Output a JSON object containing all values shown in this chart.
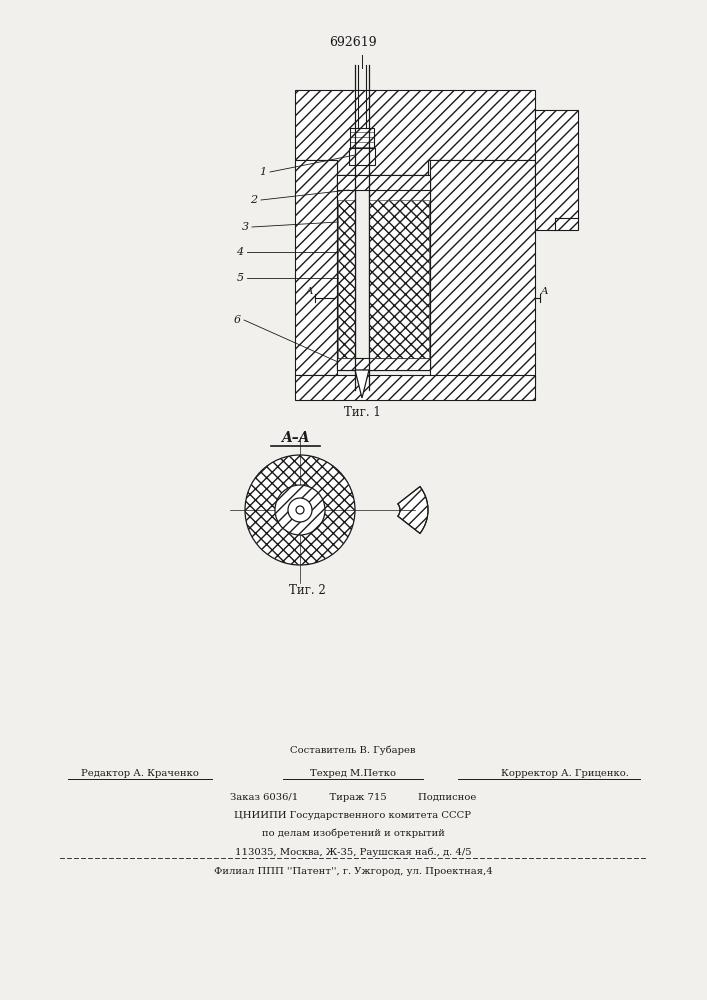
{
  "patent_number": "692619",
  "fig1_label": "Τиг. 1",
  "fig2_label": "Τиг. 2",
  "section_label": "A–A",
  "bg_color": "#f2f0ec",
  "line_color": "#1a1a1a",
  "footer_line1": "Составитель В. Губарев",
  "footer_line2a": "Редактор А. Краченко",
  "footer_line2b": "Техред М.Петко",
  "footer_line2c": "Корректор А. Гриценко.",
  "footer_line3": "Заказ 6036/1          Тираж 715          Подписное",
  "footer_line4": "ЦНИИПИ Государственного комитета СССР",
  "footer_line5": "по делам изобретений и открытий",
  "footer_line6": "113035, Москва, Ж-35, Раушская наб., д. 4/5",
  "footer_line7": "Филиал ППП ''Патент'', г. Ужгород, ул. Проектная,4"
}
